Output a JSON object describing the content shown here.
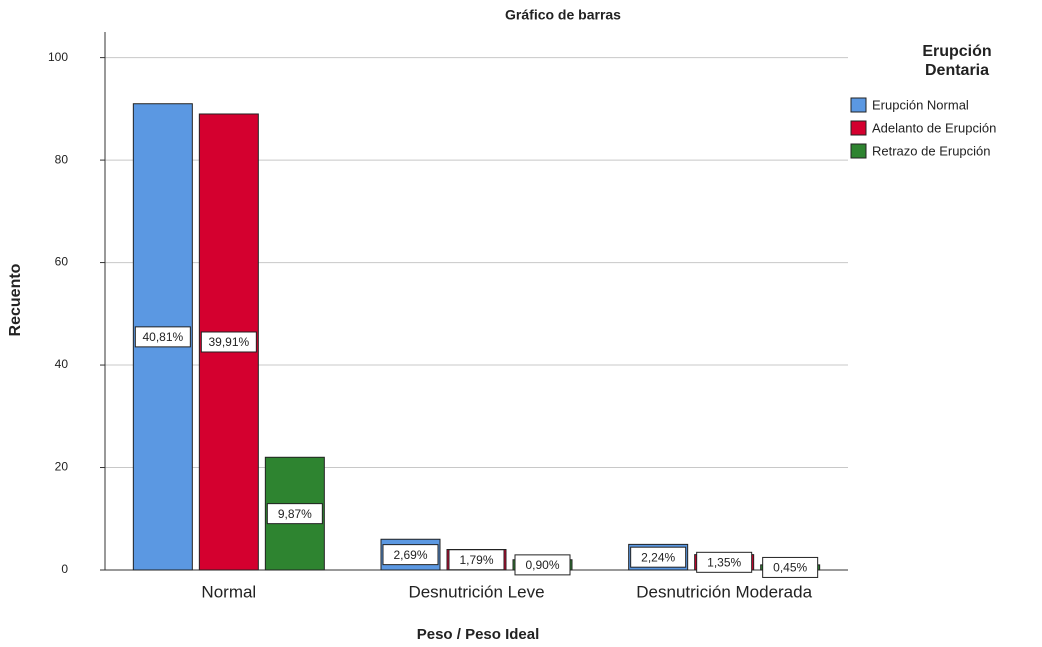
{
  "chart_data": {
    "type": "bar",
    "title": "Gráfico de barras",
    "x_label": "Peso / Peso Ideal",
    "y_label": "Recuento",
    "categories": [
      "Normal",
      "Desnutrición Leve",
      "Desnutrición Moderada"
    ],
    "legend_title": "Erupción Dentaria",
    "legend_position": "right",
    "series": [
      {
        "name": "Erupción Normal",
        "color": "#5b98e2",
        "values": [
          91,
          6,
          5
        ],
        "data_labels": [
          "40,81%",
          "2,69%",
          "2,24%"
        ]
      },
      {
        "name": "Adelanto de Erupción",
        "color": "#d4002f",
        "values": [
          89,
          4,
          3
        ],
        "data_labels": [
          "39,91%",
          "1,79%",
          "1,35%"
        ]
      },
      {
        "name": "Retrazo de Erupción",
        "color": "#2e8430",
        "values": [
          22,
          2,
          1
        ],
        "data_labels": [
          "9,87%",
          "0,90%",
          "0,45%"
        ]
      }
    ],
    "ylim": [
      0,
      105
    ],
    "yticks": [
      0,
      20,
      40,
      60,
      80,
      100
    ],
    "grid": true
  }
}
